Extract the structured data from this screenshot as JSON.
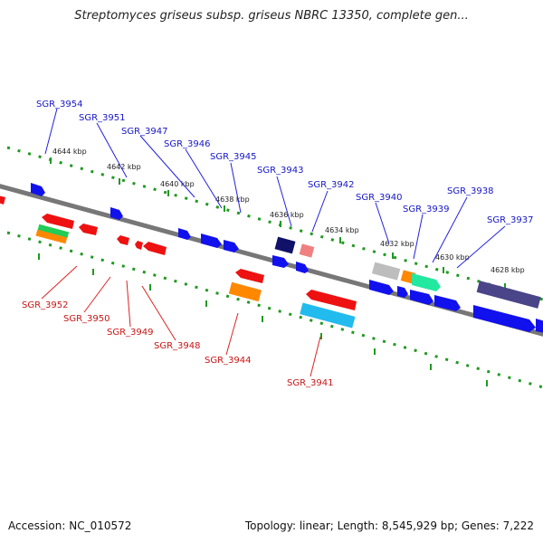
{
  "title": "Streptomyces griseus subsp. griseus NBRC 13350, complete gen...",
  "accession": "Accession: NC_010572",
  "summary": "Topology: linear; Length: 8,545,929 bp; Genes: 7,222",
  "kbp_labels": [
    "4644 kbp",
    "4642 kbp",
    "4640 kbp",
    "4638 kbp",
    "4636 kbp",
    "4634 kbp",
    "4632 kbp",
    "4630 kbp",
    "4628 kbp"
  ],
  "upper_labels": [
    "SGR_3954",
    "SGR_3951",
    "SGR_3947",
    "SGR_3946",
    "SGR_3945",
    "SGR_3943",
    "SGR_3942",
    "SGR_3940",
    "SGR_3939",
    "SGR_3938",
    "SGR_3937"
  ],
  "lower_labels": [
    "SGR_3952",
    "SGR_3950",
    "SGR_3949",
    "SGR_3948",
    "SGR_3944",
    "SGR_3941"
  ],
  "colors": {
    "forward": "#1111ee",
    "reverse": "#ee1111",
    "orange": "#ff8800",
    "green": "#22cc55",
    "navy": "#11116a",
    "pink": "#f08080",
    "grey": "#bdbdbd",
    "cyan": "#22bbee",
    "mint": "#22e8a0",
    "slate": "#4a4488",
    "tick": "#228822",
    "axis": "#777777"
  }
}
